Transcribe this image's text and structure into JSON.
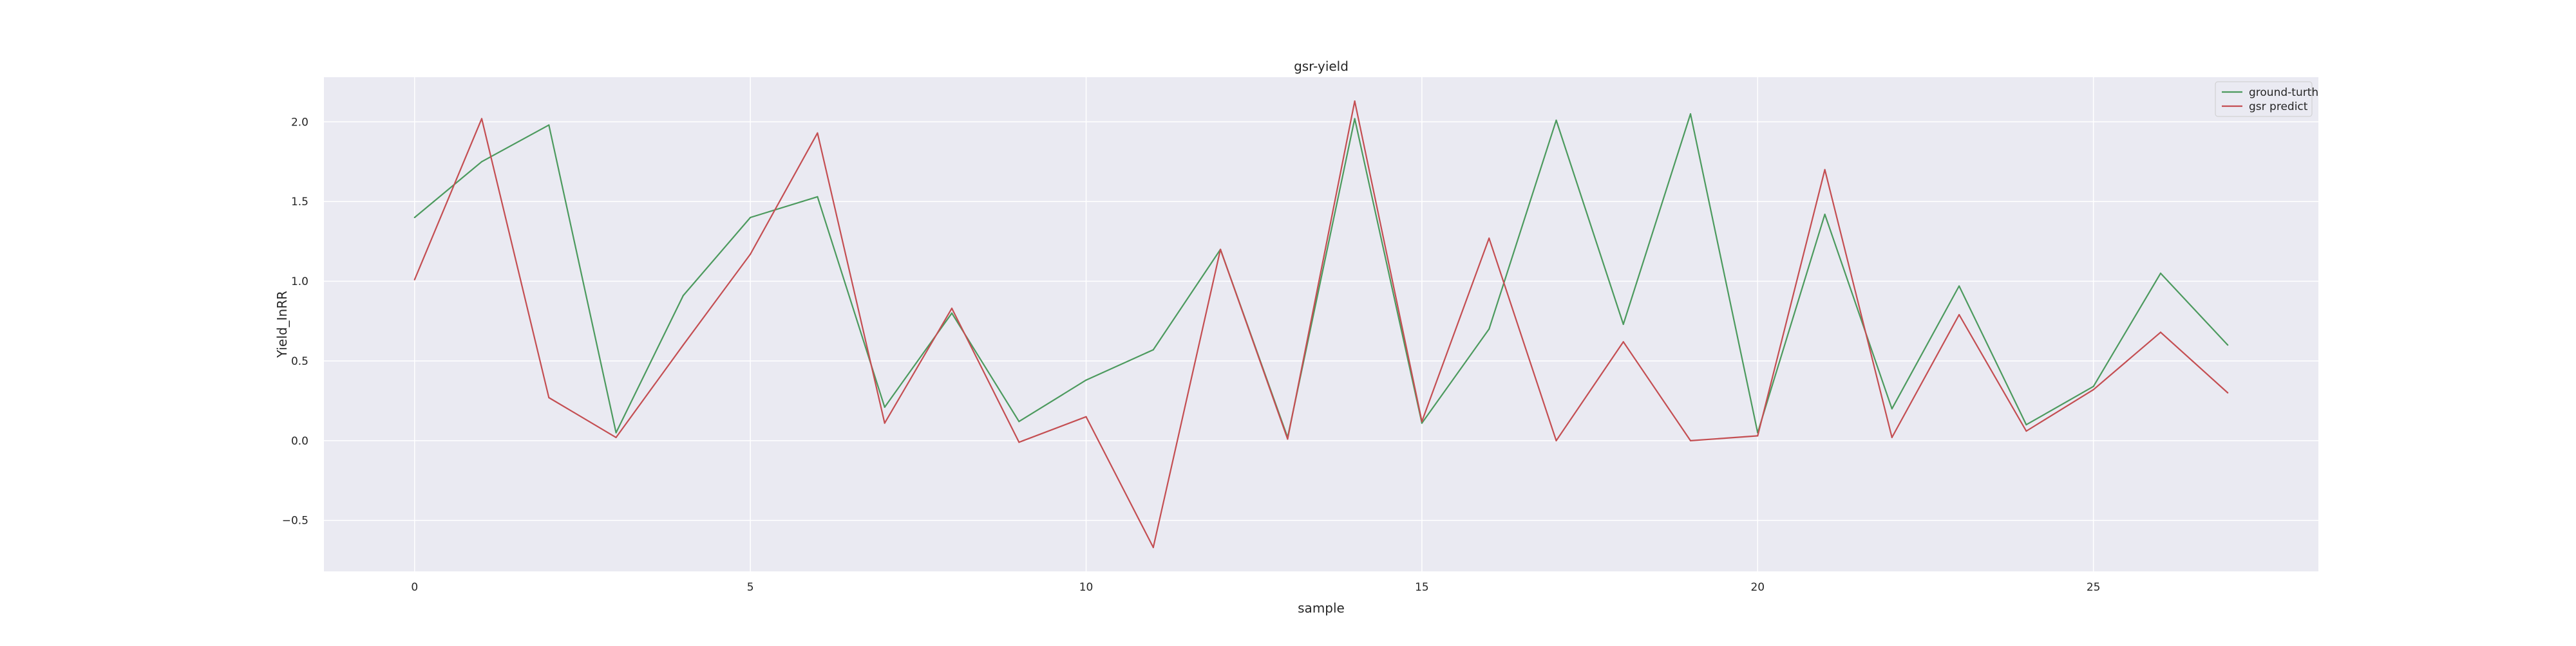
{
  "chart_data": {
    "type": "line",
    "title": "gsr-yield",
    "xlabel": "sample",
    "ylabel": "Yield_InRR",
    "xlim": [
      -1.35,
      28.35
    ],
    "ylim": [
      -0.82,
      2.28
    ],
    "xticks": [
      0,
      5,
      10,
      15,
      20,
      25
    ],
    "yticks": [
      -0.5,
      0.0,
      0.5,
      1.0,
      1.5,
      2.0
    ],
    "xtick_labels": [
      "0",
      "5",
      "10",
      "15",
      "20",
      "25"
    ],
    "ytick_labels": [
      "−0.5",
      "0.0",
      "0.5",
      "1.0",
      "1.5",
      "2.0"
    ],
    "grid": true,
    "legend_position": "top-right",
    "x": [
      0,
      1,
      2,
      3,
      4,
      5,
      6,
      7,
      8,
      9,
      10,
      11,
      12,
      13,
      14,
      15,
      16,
      17,
      18,
      19,
      20,
      21,
      22,
      23,
      24,
      25,
      26,
      27
    ],
    "series": [
      {
        "name": "ground-turth",
        "color": "#4c9a5e",
        "values": [
          1.4,
          1.75,
          1.98,
          0.05,
          0.91,
          1.4,
          1.53,
          0.21,
          0.8,
          0.12,
          0.38,
          0.57,
          1.2,
          0.02,
          2.02,
          0.11,
          0.7,
          2.01,
          0.73,
          2.05,
          0.05,
          1.42,
          0.2,
          0.97,
          0.1,
          0.34,
          1.05,
          0.6
        ]
      },
      {
        "name": "gsr predict",
        "color": "#c44e52",
        "values": [
          1.01,
          2.02,
          0.27,
          0.02,
          0.6,
          1.17,
          1.93,
          0.11,
          0.83,
          -0.01,
          0.15,
          -0.67,
          1.2,
          0.01,
          2.13,
          0.12,
          1.27,
          0.0,
          0.62,
          0.0,
          0.03,
          1.7,
          0.02,
          0.79,
          0.06,
          0.32,
          0.68,
          0.3
        ]
      }
    ]
  }
}
